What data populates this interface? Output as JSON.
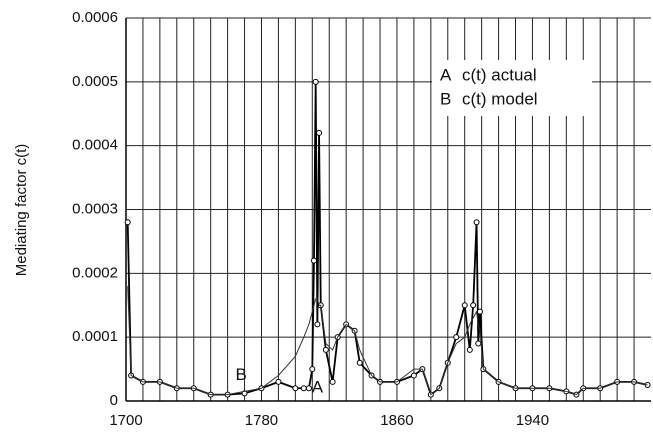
{
  "chart_data": {
    "type": "line",
    "y_label": "Mediating factor c(t)",
    "x": [
      1701,
      1703,
      1710,
      1720,
      1730,
      1740,
      1750,
      1760,
      1770,
      1780,
      1790,
      1800,
      1805,
      1808,
      1810,
      1811,
      1812,
      1813,
      1814,
      1815,
      1818,
      1822,
      1825,
      1830,
      1835,
      1838,
      1845,
      1850,
      1860,
      1870,
      1875,
      1880,
      1885,
      1890,
      1895,
      1900,
      1903,
      1905,
      1907,
      1908,
      1909,
      1911,
      1920,
      1930,
      1940,
      1950,
      1960,
      1966,
      1970,
      1980,
      1990,
      2000,
      2008
    ],
    "series": [
      {
        "name": "c(t) actual",
        "label": "A",
        "color": "#000000",
        "markers": true,
        "values": [
          0.00028,
          4e-05,
          3e-05,
          3e-05,
          2e-05,
          2e-05,
          1e-05,
          1e-05,
          1.2e-05,
          2e-05,
          3e-05,
          2e-05,
          2e-05,
          2e-05,
          5e-05,
          0.00022,
          0.0005,
          0.00012,
          0.00042,
          0.00015,
          8e-05,
          3e-05,
          0.0001,
          0.00012,
          0.00011,
          6e-05,
          4e-05,
          3e-05,
          3e-05,
          4e-05,
          5e-05,
          1e-05,
          2e-05,
          6e-05,
          0.0001,
          0.00015,
          8e-05,
          0.00015,
          0.00028,
          9e-05,
          0.00014,
          5e-05,
          3e-05,
          2e-05,
          2e-05,
          2e-05,
          1.5e-05,
          1e-05,
          2e-05,
          2e-05,
          3e-05,
          3e-05,
          2.5e-05
        ]
      },
      {
        "name": "c(t) model",
        "label": "B",
        "color": "#333333",
        "markers": false,
        "values": [
          0.00018,
          4e-05,
          3e-05,
          3e-05,
          2e-05,
          2e-05,
          1e-05,
          1e-05,
          1.5e-05,
          2e-05,
          4e-05,
          7e-05,
          0.0001,
          0.00012,
          0.00014,
          0.00015,
          0.00016,
          0.00016,
          0.00015,
          0.00015,
          9e-05,
          8e-05,
          0.0001,
          0.00012,
          0.00011,
          8e-05,
          4e-05,
          3e-05,
          3e-05,
          5e-05,
          5e-05,
          1e-05,
          2e-05,
          6e-05,
          9e-05,
          0.0001,
          0.00012,
          0.00013,
          0.00014,
          0.00012,
          0.00011,
          5e-05,
          3e-05,
          2e-05,
          2e-05,
          2e-05,
          1.5e-05,
          1e-05,
          2e-05,
          2e-05,
          3e-05,
          3e-05,
          2.5e-05
        ]
      }
    ],
    "annotations": [
      {
        "text": "B",
        "x": 1768,
        "y": 4e-05
      },
      {
        "text": "A",
        "x": 1813,
        "y": 2e-05
      }
    ],
    "xlim": [
      1700,
      2010
    ],
    "xticks": [
      1700,
      1780,
      1860,
      1940
    ],
    "minor_xticks": [
      1710,
      1720,
      1730,
      1740,
      1750,
      1760,
      1770,
      1790,
      1800,
      1810,
      1820,
      1830,
      1840,
      1850,
      1870,
      1880,
      1890,
      1900,
      1910,
      1920,
      1930,
      1950,
      1960,
      1970,
      1980,
      1990,
      2000
    ],
    "ylim": [
      0,
      0.0006
    ],
    "yticks": [
      0,
      0.0001,
      0.0002,
      0.0003,
      0.0004,
      0.0005,
      0.0006
    ],
    "grid": true,
    "legend": "upper right"
  }
}
